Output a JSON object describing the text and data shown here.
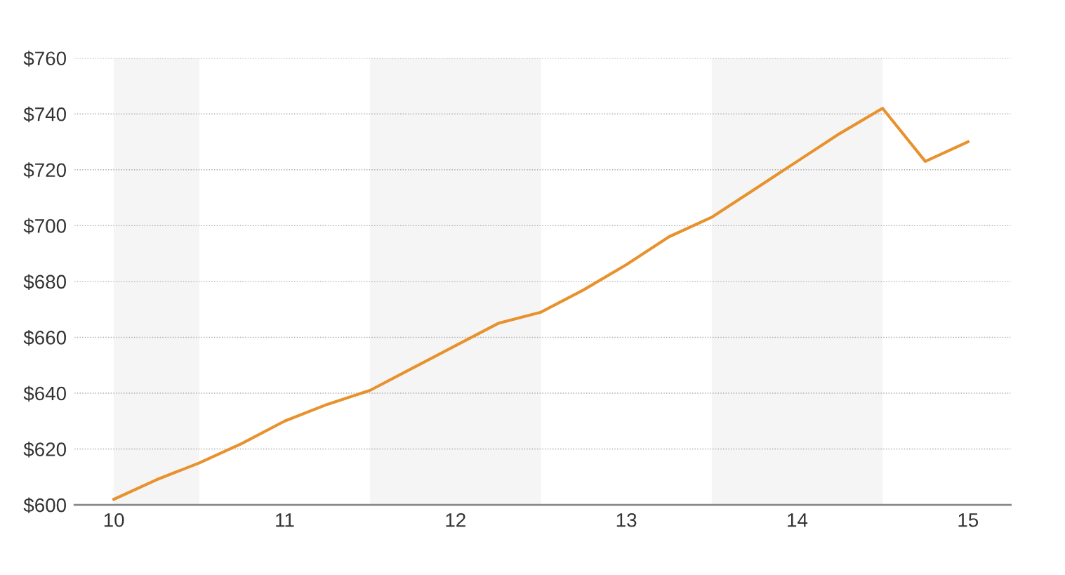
{
  "chart_data": {
    "type": "line",
    "x": [
      10,
      10.25,
      10.5,
      10.75,
      11,
      11.25,
      11.5,
      11.75,
      12,
      12.25,
      12.5,
      12.75,
      13,
      13.25,
      13.5,
      13.75,
      14,
      14.25,
      14.5,
      14.75,
      15
    ],
    "series": [
      {
        "color": "#e8922e",
        "values": [
          602,
          609,
          615,
          622,
          630,
          636,
          641,
          649,
          657,
          665,
          669,
          677,
          686,
          696,
          703,
          713,
          723,
          733,
          742,
          723,
          730
        ]
      }
    ],
    "xlim": [
      9.77,
      15.25
    ],
    "xticks": [
      10,
      11,
      12,
      13,
      14,
      15
    ],
    "ylim": [
      600,
      760
    ],
    "yticks": [
      {
        "value": 600,
        "label": "$600"
      },
      {
        "value": 620,
        "label": "$620"
      },
      {
        "value": 640,
        "label": "$640"
      },
      {
        "value": 660,
        "label": "$660"
      },
      {
        "value": 680,
        "label": "$680"
      },
      {
        "value": 700,
        "label": "$700"
      },
      {
        "value": 720,
        "label": "$720"
      },
      {
        "value": 740,
        "label": "$740"
      },
      {
        "value": 760,
        "label": "$760"
      }
    ],
    "bands": [
      {
        "axis": "x",
        "from": 10,
        "to": 10.5,
        "color": "#f5f5f5"
      },
      {
        "axis": "x",
        "from": 11.5,
        "to": 12.5,
        "color": "#f5f5f5"
      },
      {
        "axis": "x",
        "from": 13.5,
        "to": 14.5,
        "color": "#f5f5f5"
      }
    ],
    "grid": "y",
    "marker": "none",
    "line_style": "solid"
  }
}
